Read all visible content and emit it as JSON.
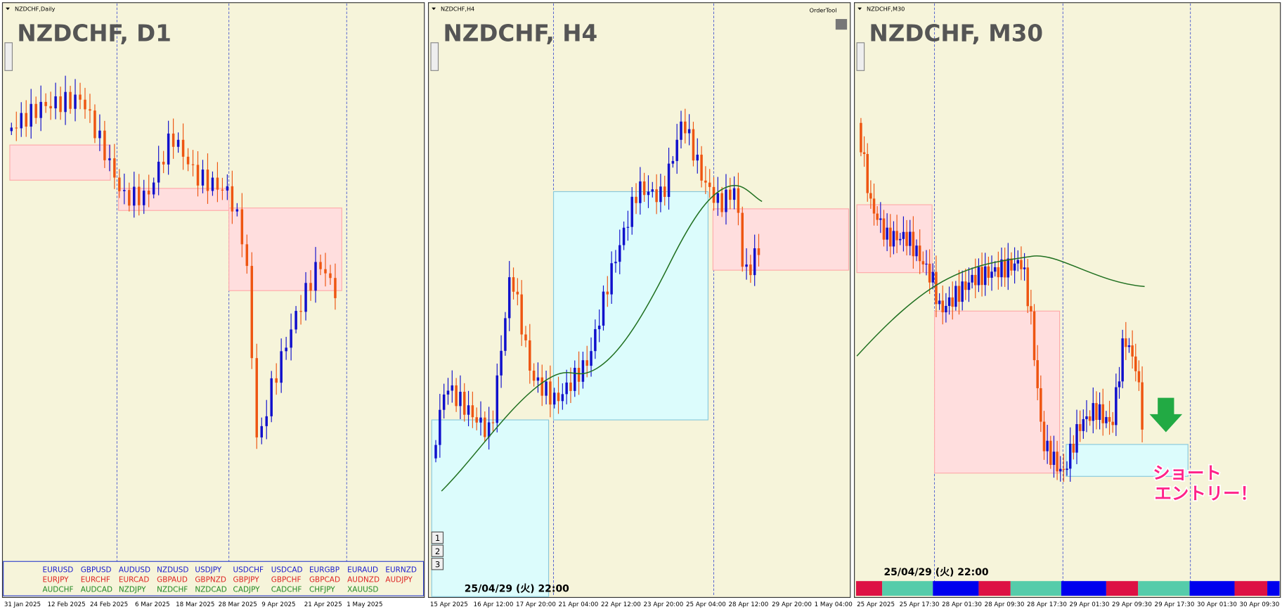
{
  "panels": [
    {
      "symbol_label": "NZDCHF,Daily",
      "title": "NZDCHF, D1",
      "x_labels": [
        "31 Jan 2025",
        "12 Feb 2025",
        "24 Feb 2025",
        "6 Mar 2025",
        "18 Mar 2025",
        "28 Mar 2025",
        "9 Apr 2025",
        "21 Apr 2025",
        "1 May 2025"
      ]
    },
    {
      "symbol_label": "NZDCHF,H4",
      "title": "NZDCHF, H4",
      "order_tool": "OrderTool",
      "buttons": [
        "1",
        "2",
        "3"
      ],
      "timestamp": "25/04/29 (火) 22:00",
      "x_labels": [
        "15 Apr 2025",
        "16 Apr 12:00",
        "17 Apr 20:00",
        "21 Apr 04:00",
        "22 Apr 12:00",
        "23 Apr 20:00",
        "25 Apr 04:00",
        "28 Apr 12:00",
        "29 Apr 20:00",
        "1 May 04:00"
      ]
    },
    {
      "symbol_label": "NZDCHF,M30",
      "title": "NZDCHF, M30",
      "timestamp": "25/04/29 (火) 22:00",
      "annotation": [
        "ショート",
        "エントリー！"
      ],
      "x_labels": [
        "25 Apr 2025",
        "25 Apr 17:30",
        "28 Apr 01:30",
        "28 Apr 09:30",
        "28 Apr 17:30",
        "29 Apr 01:30",
        "29 Apr 09:30",
        "29 Apr 17:30",
        "30 Apr 01:30",
        "30 Apr 09:30"
      ]
    }
  ],
  "symbol_grid": {
    "rows": [
      [
        "EURUSD",
        "GBPUSD",
        "AUDUSD",
        "NZDUSD",
        "USDJPY",
        "USDCHF",
        "USDCAD",
        "EURGBP",
        "EURAUD",
        "EURNZD"
      ],
      [
        "EURJPY",
        "EURCHF",
        "EURCAD",
        "GBPAUD",
        "GBPNZD",
        "GBPJPY",
        "GBPCHF",
        "GBPCAD",
        "AUDNZD",
        "AUDJPY"
      ],
      [
        "AUDCHF",
        "AUDCAD",
        "NZDJPY",
        "NZDCHF",
        "NZDCAD",
        "CADJPY",
        "CADCHF",
        "CHFJPY",
        "XAUUSD"
      ]
    ]
  }
}
